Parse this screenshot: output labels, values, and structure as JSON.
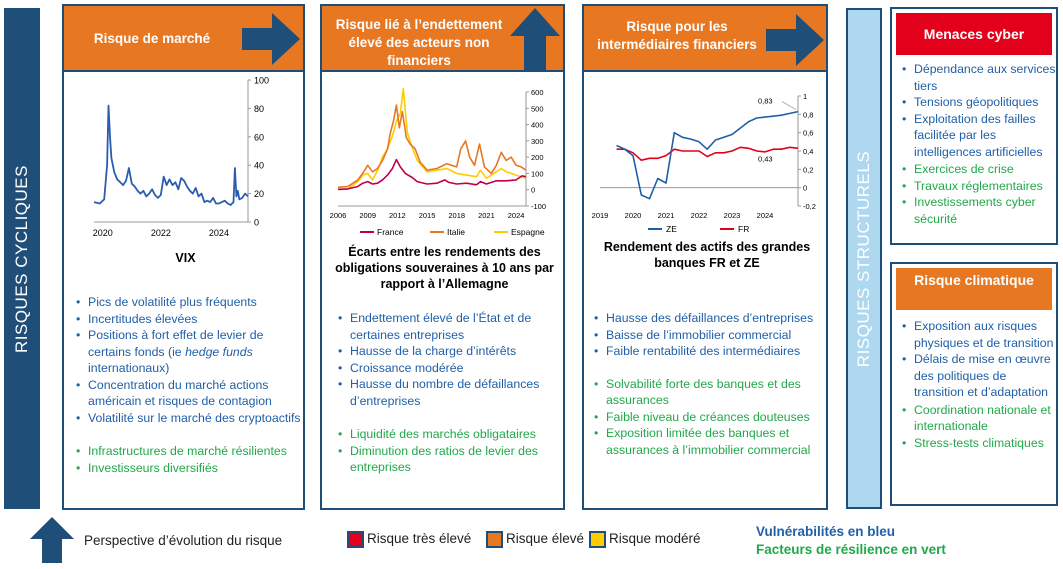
{
  "bands": {
    "left": "RISQUES CYCLIQUES",
    "right": "RISQUES STRUCTURELS"
  },
  "colors": {
    "navy": "#1f4e79",
    "orange": "#e87722",
    "red": "#e2001a",
    "yellow": "#ffcc00",
    "blue_text": "#1f5fa8",
    "green_text": "#21a84a"
  },
  "panels": {
    "market": {
      "title": "Risque de marché",
      "arrow": "arrow-right",
      "caption": "VIX",
      "vulnerabilities": [
        "Pics de volatilité plus fréquents",
        "Incertitudes élevées"
      ],
      "v3_pre": "Positions à fort effet de levier de certains fonds (ie ",
      "v3_italic": "hedge funds",
      "v3_post": " internationaux)",
      "vulnerabilities2": [
        "Concentration du marché actions américain et risques de contagion",
        "Volatilité sur le marché des cryptoactifs"
      ],
      "resilience": [
        "Infrastructures de marché résilientes",
        "Investisseurs diversifiés"
      ]
    },
    "debt": {
      "title": "Risque lié à l’endettement élevé des acteurs non financiers",
      "arrow": "arrow-up",
      "caption": "Écarts entre les rendements des obligations souveraines à 10 ans par rapport à l’Allemagne",
      "vulnerabilities": [
        "Endettement élevé de l’État et de certaines entreprises",
        "Hausse de la charge d’intérêts",
        "Croissance modérée",
        "Hausse du nombre de défaillances d’entreprises"
      ],
      "resilience": [
        "Liquidité des marchés obligataires",
        "Diminution des ratios de levier des entreprises"
      ]
    },
    "intermediaries": {
      "title": "Risque pour les intermédiaires financiers",
      "arrow": "arrow-right",
      "caption": "Rendement des actifs des grandes banques FR et ZE",
      "vulnerabilities": [
        "Hausse des défaillances d’entreprises",
        "Baisse de l’immobilier commercial",
        "Faible rentabilité des intermédiaires"
      ],
      "resilience": [
        "Solvabilité forte des banques et des assurances",
        "Faible niveau de créances douteuses",
        "Exposition limitée des banques et assurances à l’immobilier commercial"
      ]
    }
  },
  "cyber": {
    "title": "Menaces cyber",
    "vulnerabilities": [
      "Dépendance aux services tiers",
      "Tensions géopolitiques",
      "Exploitation des failles facilitée par les intelligences artificielles"
    ],
    "resilience": [
      "Exercices de crise",
      "Travaux réglementaires",
      "Investissements cyber sécurité"
    ]
  },
  "climate": {
    "title": "Risque climatique",
    "vulnerabilities": [
      "Exposition aux risques physiques et de transition",
      "Délais de mise en œuvre des politiques de transition et d’adaptation"
    ],
    "resilience": [
      "Coordination nationale et internationale",
      "Stress-tests climatiques"
    ]
  },
  "legend": {
    "perspective": "Perspective d’évolution du risque",
    "very_high": "Risque très élevé",
    "high": "Risque élevé",
    "moderate": "Risque modéré",
    "blue_note": "Vulnérabilités en bleu",
    "green_note": "Facteurs de résilience en vert"
  },
  "chart_data": [
    {
      "type": "line",
      "x_ticks": [
        "2020",
        "2022",
        "2024"
      ],
      "y_ticks": [
        "0",
        "20",
        "40",
        "60",
        "80",
        "100"
      ],
      "ylim": [
        0,
        100
      ],
      "xlim": [
        2019.7,
        2025.0
      ],
      "series": [
        {
          "color": "#2a5db0",
          "x": [
            2019.7,
            2019.9,
            2020.05,
            2020.15,
            2020.2,
            2020.25,
            2020.3,
            2020.4,
            2020.5,
            2020.6,
            2020.7,
            2020.8,
            2020.9,
            2021.0,
            2021.1,
            2021.2,
            2021.3,
            2021.4,
            2021.5,
            2021.6,
            2021.7,
            2021.8,
            2021.9,
            2022.0,
            2022.1,
            2022.2,
            2022.3,
            2022.4,
            2022.5,
            2022.6,
            2022.7,
            2022.8,
            2022.9,
            2023.0,
            2023.1,
            2023.2,
            2023.3,
            2023.4,
            2023.5,
            2023.6,
            2023.7,
            2023.8,
            2023.9,
            2024.0,
            2024.1,
            2024.2,
            2024.3,
            2024.4,
            2024.5,
            2024.55,
            2024.6,
            2024.65,
            2024.7,
            2024.8,
            2024.9,
            2025.0
          ],
          "y": [
            14,
            13,
            16,
            40,
            82,
            60,
            45,
            35,
            30,
            28,
            26,
            29,
            38,
            27,
            25,
            22,
            20,
            22,
            18,
            20,
            23,
            19,
            17,
            19,
            32,
            26,
            30,
            26,
            28,
            23,
            31,
            29,
            25,
            22,
            20,
            24,
            18,
            20,
            14,
            15,
            14,
            17,
            13,
            13,
            14,
            15,
            13,
            12,
            14,
            38,
            18,
            22,
            16,
            17,
            20,
            18
          ]
        }
      ]
    },
    {
      "type": "line",
      "x_ticks": [
        "2006",
        "2009",
        "2012",
        "2015",
        "2018",
        "2021",
        "2024"
      ],
      "y_ticks": [
        "-100",
        "0",
        "100",
        "200",
        "300",
        "400",
        "500",
        "600"
      ],
      "ylim": [
        -100,
        600
      ],
      "xlim": [
        2006,
        2025
      ],
      "series": [
        {
          "name": "France",
          "color": "#c0004e",
          "x": [
            2006,
            2007,
            2008,
            2008.5,
            2009,
            2009.5,
            2010,
            2010.5,
            2011,
            2011.5,
            2011.9,
            2012.3,
            2012.8,
            2013.5,
            2014,
            2015,
            2016,
            2016.8,
            2017.2,
            2018,
            2019,
            2020,
            2020.4,
            2021,
            2022,
            2023,
            2024,
            2024.6,
            2025
          ],
          "y": [
            2,
            5,
            20,
            40,
            50,
            35,
            40,
            60,
            90,
            130,
            185,
            140,
            100,
            75,
            50,
            35,
            40,
            60,
            45,
            35,
            40,
            30,
            50,
            35,
            55,
            55,
            60,
            85,
            80
          ]
        },
        {
          "name": "Italie",
          "color": "#e87722",
          "x": [
            2006,
            2007,
            2008,
            2008.5,
            2009,
            2009.5,
            2010,
            2010.5,
            2011,
            2011.3,
            2011.6,
            2011.9,
            2012.2,
            2012.5,
            2012.9,
            2013.3,
            2013.8,
            2014.3,
            2015,
            2016,
            2017,
            2018,
            2018.4,
            2018.9,
            2019.3,
            2019.8,
            2020.3,
            2020.8,
            2021.5,
            2022,
            2022.5,
            2023,
            2023.5,
            2024,
            2024.5,
            2025
          ],
          "y": [
            15,
            20,
            60,
            100,
            150,
            110,
            130,
            180,
            250,
            350,
            420,
            520,
            380,
            480,
            320,
            280,
            250,
            170,
            120,
            130,
            160,
            140,
            250,
            300,
            200,
            150,
            280,
            140,
            100,
            150,
            230,
            180,
            200,
            150,
            140,
            120
          ]
        },
        {
          "name": "Espagne",
          "color": "#ffcc00",
          "x": [
            2006,
            2007,
            2008,
            2008.5,
            2009,
            2009.5,
            2010,
            2010.5,
            2011,
            2011.5,
            2011.9,
            2012.3,
            2012.6,
            2013,
            2013.5,
            2014,
            2015,
            2016,
            2017,
            2018,
            2019,
            2020,
            2020.4,
            2021,
            2022,
            2022.5,
            2023,
            2023.5,
            2024,
            2024.5,
            2025
          ],
          "y": [
            3,
            5,
            50,
            90,
            100,
            60,
            120,
            200,
            250,
            330,
            420,
            470,
            620,
            350,
            260,
            180,
            110,
            120,
            130,
            100,
            90,
            80,
            120,
            70,
            110,
            130,
            110,
            100,
            90,
            80,
            70
          ]
        }
      ]
    },
    {
      "type": "line",
      "x_ticks": [
        "2019",
        "2020",
        "2021",
        "2022",
        "2023",
        "2024"
      ],
      "y_ticks": [
        "-0,2",
        "0",
        "0,2",
        "0,4",
        "0,6",
        "0,8",
        "1"
      ],
      "ylim": [
        -0.2,
        1.0
      ],
      "xlim": [
        2019,
        2025
      ],
      "annotations": [
        "0,83",
        "0,43"
      ],
      "series": [
        {
          "name": "ZE",
          "color": "#1f5fa8",
          "x": [
            2019.5,
            2019.75,
            2020.0,
            2020.25,
            2020.5,
            2020.75,
            2021.0,
            2021.25,
            2021.5,
            2021.75,
            2022.0,
            2022.25,
            2022.5,
            2022.75,
            2023.0,
            2023.25,
            2023.5,
            2023.75,
            2024.0,
            2024.25,
            2024.5,
            2024.75,
            2025.0
          ],
          "y": [
            0.46,
            0.42,
            0.35,
            -0.08,
            -0.12,
            0.1,
            0.05,
            0.6,
            0.55,
            0.53,
            0.5,
            0.42,
            0.52,
            0.55,
            0.58,
            0.65,
            0.72,
            0.76,
            0.77,
            0.78,
            0.79,
            0.81,
            0.83
          ]
        },
        {
          "name": "FR",
          "color": "#e2001a",
          "x": [
            2019.5,
            2019.75,
            2020.0,
            2020.25,
            2020.5,
            2020.75,
            2021.0,
            2021.25,
            2021.5,
            2021.75,
            2022.0,
            2022.25,
            2022.5,
            2022.75,
            2023.0,
            2023.25,
            2023.5,
            2023.75,
            2024.0,
            2024.25,
            2024.5,
            2024.75,
            2025.0
          ],
          "y": [
            0.42,
            0.42,
            0.38,
            0.3,
            0.32,
            0.32,
            0.35,
            0.42,
            0.4,
            0.4,
            0.4,
            0.34,
            0.38,
            0.38,
            0.4,
            0.44,
            0.43,
            0.4,
            0.39,
            0.42,
            0.42,
            0.44,
            0.43
          ]
        }
      ]
    }
  ]
}
